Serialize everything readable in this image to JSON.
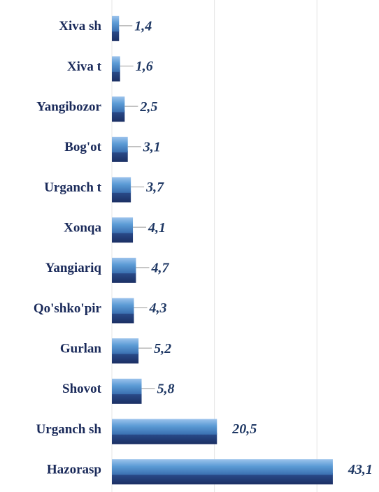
{
  "chart_data": {
    "type": "bar",
    "orientation": "horizontal",
    "categories": [
      "Xiva sh",
      "Xiva t",
      "Yangibozor",
      "Bog'ot",
      "Urganch t",
      "Xonqa",
      "Yangiariq",
      "Qo'shko'pir",
      "Gurlan",
      "Shovot",
      "Urganch sh",
      "Hazorasp"
    ],
    "values": [
      1.4,
      1.6,
      2.5,
      3.1,
      3.7,
      4.1,
      4.7,
      4.3,
      5.2,
      5.8,
      20.5,
      43.1
    ],
    "value_labels": [
      "1,4",
      "1,6",
      "2,5",
      "3,1",
      "3,7",
      "4,1",
      "4,7",
      "4,3",
      "5,2",
      "5,8",
      "20,5",
      "43,1"
    ],
    "color": "#5b9bd5",
    "xlim": [
      0,
      50
    ],
    "xticks": [
      0,
      20,
      40
    ],
    "grid": true
  }
}
